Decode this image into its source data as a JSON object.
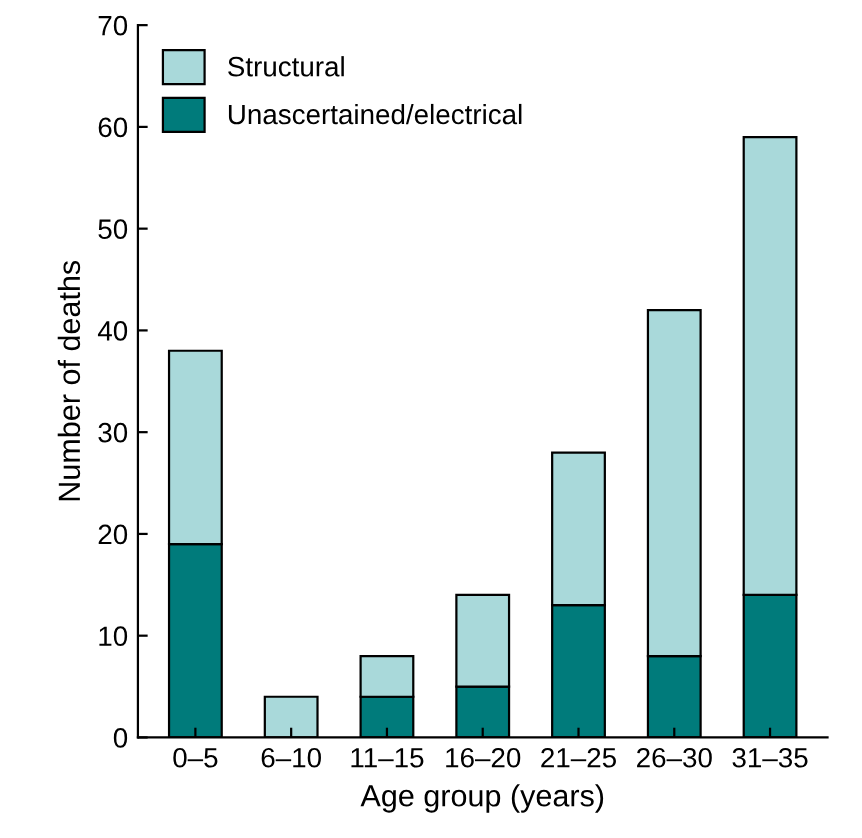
{
  "chart_data": {
    "type": "bar",
    "stacked": true,
    "xlabel": "Age group (years)",
    "ylabel": "Number of deaths",
    "categories": [
      "0–5",
      "6–10",
      "11–15",
      "16–20",
      "21–25",
      "26–30",
      "31–35"
    ],
    "series": [
      {
        "name": "Unascertained/electrical",
        "color": "#007b7b",
        "values": [
          19,
          0,
          4,
          5,
          13,
          8,
          14
        ]
      },
      {
        "name": "Structural",
        "color": "#a9d9da",
        "values": [
          19,
          4,
          4,
          9,
          15,
          34,
          45
        ]
      }
    ],
    "ylim": [
      0,
      70
    ],
    "yticks": [
      0,
      10,
      20,
      30,
      40,
      50,
      60,
      70
    ],
    "grid": false,
    "legend": "top left"
  }
}
